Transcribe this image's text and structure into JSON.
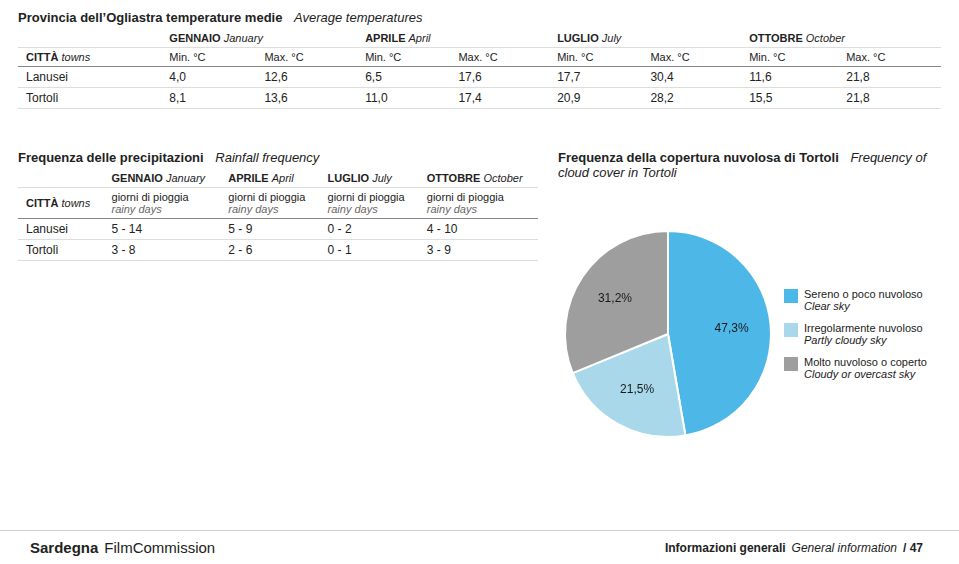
{
  "chart_data": [
    {
      "type": "table",
      "title": "Provincia dell’Ogliastra temperature medie",
      "subtitle": "Average temperatures",
      "row_header": [
        "CITTÀ",
        "towns"
      ],
      "column_groups": [
        [
          "GENNAIO",
          "January"
        ],
        [
          "APRILE",
          "April"
        ],
        [
          "LUGLIO",
          "July"
        ],
        [
          "OTTOBRE",
          "October"
        ]
      ],
      "columns": [
        "Min. °C",
        "Max. °C",
        "Min. °C",
        "Max. °C",
        "Min. °C",
        "Max. °C",
        "Min. °C",
        "Max. °C"
      ],
      "categories": [
        "Lanusei",
        "Tortolì"
      ],
      "values": [
        [
          4.0,
          12.6,
          6.5,
          17.6,
          17.7,
          30.4,
          11.6,
          21.8
        ],
        [
          8.1,
          13.6,
          11.0,
          17.4,
          20.9,
          28.2,
          15.5,
          21.8
        ]
      ],
      "value_labels": [
        [
          "4,0",
          "12,6",
          "6,5",
          "17,6",
          "17,7",
          "30,4",
          "11,6",
          "21,8"
        ],
        [
          "8,1",
          "13,6",
          "11,0",
          "17,4",
          "20,9",
          "28,2",
          "15,5",
          "21,8"
        ]
      ]
    },
    {
      "type": "table",
      "title": "Frequenza delle precipitazioni",
      "subtitle": "Rainfall frequency",
      "row_header": [
        "CITTÀ",
        "towns"
      ],
      "column_groups": [
        [
          "GENNAIO",
          "January"
        ],
        [
          "APRILE",
          "April"
        ],
        [
          "LUGLIO",
          "July"
        ],
        [
          "OTTOBRE",
          "October"
        ]
      ],
      "columns": [
        [
          "giorni di pioggia",
          "rainy days"
        ],
        [
          "giorni di pioggia",
          "rainy days"
        ],
        [
          "giorni di pioggia",
          "rainy days"
        ],
        [
          "giorni di pioggia",
          "rainy days"
        ]
      ],
      "categories": [
        "Lanusei",
        "Tortolì"
      ],
      "cells": [
        [
          "5 - 14",
          "5 - 9",
          "0 - 2",
          "4 - 10"
        ],
        [
          "3 - 8",
          "2 - 6",
          "0 - 1",
          "3 - 9"
        ]
      ]
    },
    {
      "type": "pie",
      "title": "Frequenza della copertura nuvolosa di Tortoli",
      "subtitle": "Frequency of cloud cover in Tortoli",
      "categories": [
        "Sereno o poco nuvoloso\nClear sky",
        "Irregolarmente nuvoloso\nPartly cloudy sky",
        "Molto nuvoloso o coperto\nCloudy or overcast sky"
      ],
      "values": [
        47.3,
        21.5,
        31.2
      ],
      "value_labels": [
        "47,3%",
        "21,5%",
        "31,2%"
      ],
      "colors": [
        "#4db8e8",
        "#a8d8ea",
        "#9e9e9e"
      ],
      "data_labels": true,
      "legend": "right"
    }
  ],
  "annotations": [
    "Sardegna",
    "FilmCommission",
    "Informazioni generali",
    "General information",
    "/ 47"
  ]
}
